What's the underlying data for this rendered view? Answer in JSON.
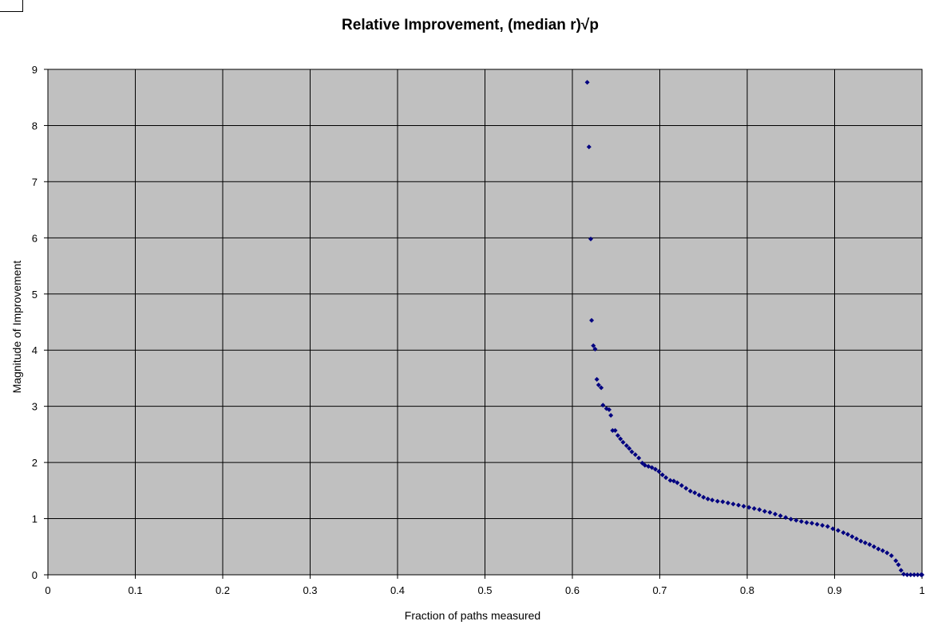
{
  "chart_data": {
    "type": "scatter",
    "title": "Relative Improvement, (median r)√p",
    "xlabel": "Fraction of paths measured",
    "ylabel": "Magnitude of Improvement",
    "xlim": [
      0,
      1
    ],
    "ylim": [
      0,
      9
    ],
    "xticks": [
      "0",
      "0.1",
      "0.2",
      "0.3",
      "0.4",
      "0.5",
      "0.6",
      "0.7",
      "0.8",
      "0.9",
      "1"
    ],
    "yticks": [
      "0",
      "1",
      "2",
      "3",
      "4",
      "5",
      "6",
      "7",
      "8",
      "9"
    ],
    "grid": true,
    "legend": "none",
    "plot_background": "#c0c0c0",
    "marker_color": "#000080",
    "series": [
      {
        "points": [
          [
            0.617,
            8.77
          ],
          [
            0.619,
            7.62
          ],
          [
            0.621,
            5.98
          ],
          [
            0.622,
            4.53
          ],
          [
            0.624,
            4.08
          ],
          [
            0.626,
            4.02
          ],
          [
            0.628,
            3.48
          ],
          [
            0.63,
            3.38
          ],
          [
            0.633,
            3.33
          ],
          [
            0.635,
            3.02
          ],
          [
            0.639,
            2.96
          ],
          [
            0.642,
            2.94
          ],
          [
            0.644,
            2.84
          ],
          [
            0.646,
            2.57
          ],
          [
            0.649,
            2.57
          ],
          [
            0.652,
            2.48
          ],
          [
            0.655,
            2.42
          ],
          [
            0.658,
            2.36
          ],
          [
            0.662,
            2.3
          ],
          [
            0.665,
            2.25
          ],
          [
            0.668,
            2.19
          ],
          [
            0.672,
            2.14
          ],
          [
            0.676,
            2.08
          ],
          [
            0.68,
            1.99
          ],
          [
            0.683,
            1.95
          ],
          [
            0.687,
            1.93
          ],
          [
            0.691,
            1.91
          ],
          [
            0.695,
            1.88
          ],
          [
            0.699,
            1.84
          ],
          [
            0.703,
            1.78
          ],
          [
            0.707,
            1.73
          ],
          [
            0.712,
            1.68
          ],
          [
            0.716,
            1.67
          ],
          [
            0.72,
            1.64
          ],
          [
            0.725,
            1.59
          ],
          [
            0.73,
            1.54
          ],
          [
            0.735,
            1.49
          ],
          [
            0.74,
            1.46
          ],
          [
            0.745,
            1.42
          ],
          [
            0.75,
            1.38
          ],
          [
            0.755,
            1.35
          ],
          [
            0.76,
            1.33
          ],
          [
            0.766,
            1.31
          ],
          [
            0.772,
            1.3
          ],
          [
            0.778,
            1.28
          ],
          [
            0.784,
            1.26
          ],
          [
            0.79,
            1.24
          ],
          [
            0.796,
            1.22
          ],
          [
            0.802,
            1.2
          ],
          [
            0.808,
            1.18
          ],
          [
            0.814,
            1.16
          ],
          [
            0.82,
            1.13
          ],
          [
            0.826,
            1.11
          ],
          [
            0.832,
            1.08
          ],
          [
            0.838,
            1.05
          ],
          [
            0.844,
            1.02
          ],
          [
            0.85,
            0.99
          ],
          [
            0.856,
            0.97
          ],
          [
            0.862,
            0.95
          ],
          [
            0.868,
            0.93
          ],
          [
            0.874,
            0.92
          ],
          [
            0.88,
            0.9
          ],
          [
            0.886,
            0.88
          ],
          [
            0.892,
            0.86
          ],
          [
            0.898,
            0.82
          ],
          [
            0.904,
            0.79
          ],
          [
            0.91,
            0.75
          ],
          [
            0.915,
            0.72
          ],
          [
            0.92,
            0.68
          ],
          [
            0.925,
            0.64
          ],
          [
            0.93,
            0.6
          ],
          [
            0.935,
            0.57
          ],
          [
            0.94,
            0.54
          ],
          [
            0.945,
            0.5
          ],
          [
            0.95,
            0.46
          ],
          [
            0.955,
            0.43
          ],
          [
            0.96,
            0.39
          ],
          [
            0.965,
            0.34
          ],
          [
            0.97,
            0.25
          ],
          [
            0.973,
            0.18
          ],
          [
            0.976,
            0.08
          ],
          [
            0.979,
            0.01
          ],
          [
            0.983,
            0.0
          ],
          [
            0.987,
            0.0
          ],
          [
            0.991,
            0.0
          ],
          [
            0.995,
            0.0
          ],
          [
            0.999,
            0.0
          ],
          [
            1.0,
            0.0
          ]
        ]
      }
    ]
  }
}
